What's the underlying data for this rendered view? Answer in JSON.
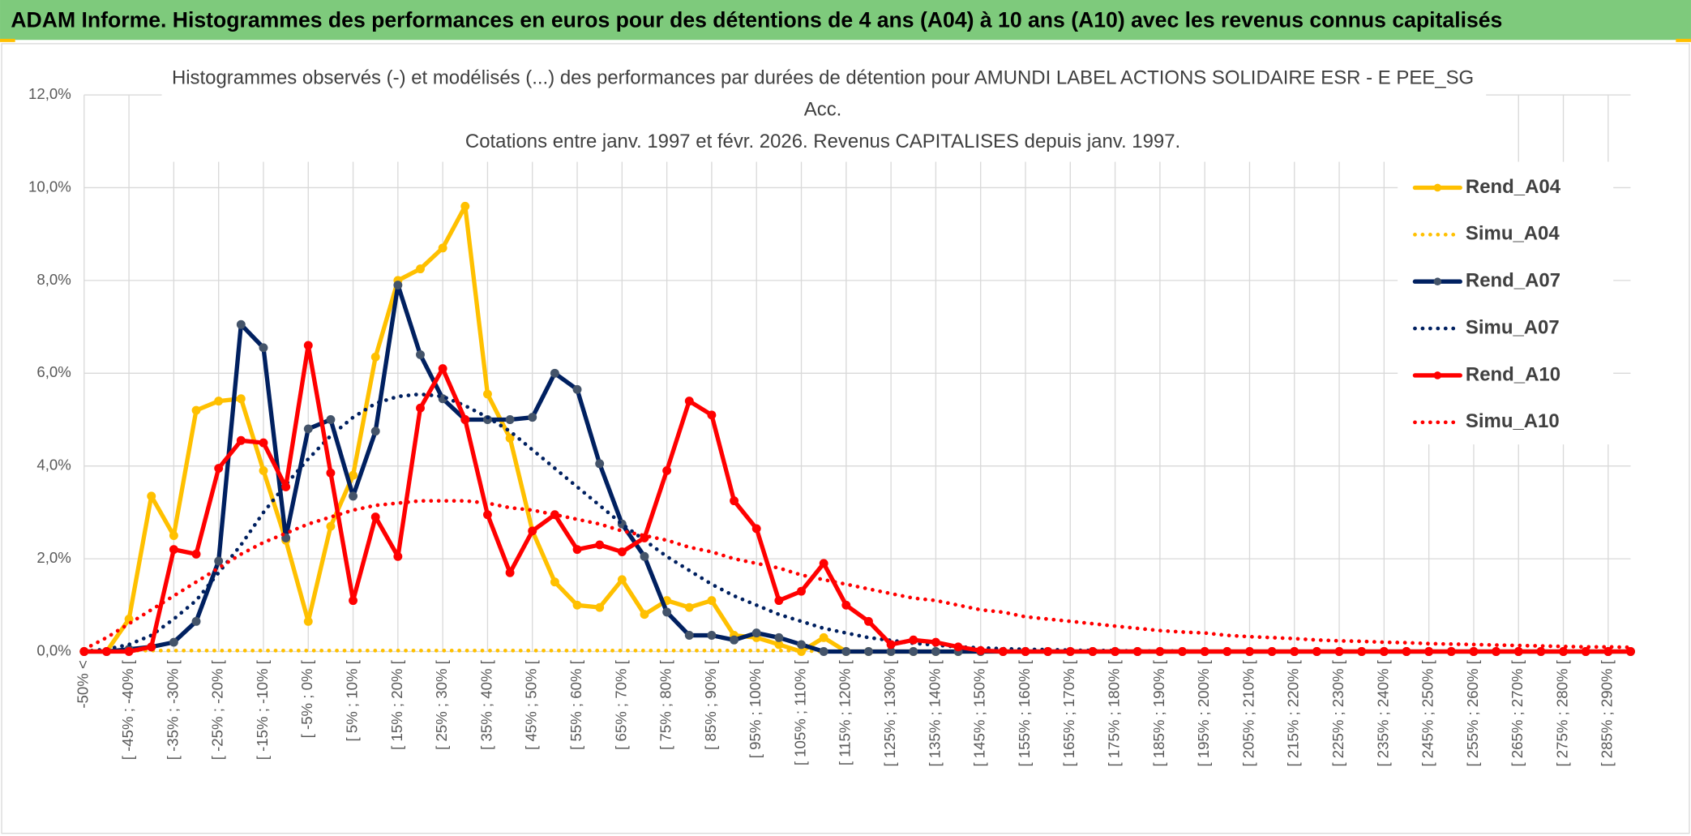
{
  "header": {
    "title": "ADAM Informe. Histogrammes des performances en euros pour des détentions de 4 ans (A04) à 10 ans (A10) avec les revenus connus capitalisés"
  },
  "chart_data": {
    "type": "line",
    "title": [
      "Histogrammes observés (-) et modélisés (...) des performances par durées de détention pour AMUNDI LABEL ACTIONS SOLIDAIRE ESR - E PEE_SG",
      "Acc.",
      "Cotations entre janv. 1997 et févr. 2026. Revenus CAPITALISES depuis janv. 1997."
    ],
    "categories": [
      "-50% <",
      null,
      "[ -45% ; -40% [",
      null,
      "[ -35% ; -30% [",
      null,
      "[ -25% ; -20% [",
      null,
      "[ -15% ; -10% [",
      null,
      "[ -5% ; 0% [",
      null,
      "[ 5% ; 10% [",
      null,
      "[ 15% ; 20% [",
      null,
      "[ 25% ; 30% [",
      null,
      "[ 35% ; 40% [",
      null,
      "[ 45% ; 50% [",
      null,
      "[ 55% ; 60% [",
      null,
      "[ 65% ; 70% [",
      null,
      "[ 75% ; 80% [",
      null,
      "[ 85% ; 90% [",
      null,
      "[ 95% ; 100% [",
      null,
      "[ 105% ; 110% [",
      null,
      "[ 115% ; 120% [",
      null,
      "[ 125% ; 130% [",
      null,
      "[ 135% ; 140% [",
      null,
      "[ 145% ; 150% [",
      null,
      "[ 155% ; 160% [",
      null,
      "[ 165% ; 170% [",
      null,
      "[ 175% ; 180% [",
      null,
      "[ 185% ; 190% [",
      null,
      "[ 195% ; 200% [",
      null,
      "[ 205% ; 210% [",
      null,
      "[ 215% ; 220% [",
      null,
      "[ 225% ; 230% [",
      null,
      "[ 235% ; 240% [",
      null,
      "[ 245% ; 250% [",
      null,
      "[ 255% ; 260% [",
      null,
      "[ 265% ; 270% [",
      null,
      "[ 275% ; 280% [",
      null,
      "[ 285% ; 290% [",
      null
    ],
    "ylim": [
      0,
      12
    ],
    "yticks": [
      {
        "value": 0,
        "label": "0,0%"
      },
      {
        "value": 2,
        "label": "2,0%"
      },
      {
        "value": 4,
        "label": "4,0%"
      },
      {
        "value": 6,
        "label": "6,0%"
      },
      {
        "value": 8,
        "label": "8,0%"
      },
      {
        "value": 10,
        "label": "10,0%"
      },
      {
        "value": 12,
        "label": "12,0%"
      }
    ],
    "grid": true,
    "legend": "right",
    "series": [
      {
        "name": "Rend_A04",
        "color": "#FFC000",
        "marker_color": "#FFC000",
        "style": "solid",
        "markers": true,
        "values": [
          0,
          0,
          0.7,
          3.35,
          2.5,
          5.2,
          5.4,
          5.45,
          3.9,
          2.4,
          0.65,
          2.7,
          3.8,
          6.35,
          8.0,
          8.25,
          8.7,
          9.6,
          5.55,
          4.6,
          2.6,
          1.5,
          1.0,
          0.95,
          1.55,
          0.8,
          1.1,
          0.95,
          1.1,
          0.35,
          0.3,
          0.15,
          0,
          0.3,
          0,
          0,
          0,
          0,
          0,
          0,
          0,
          0,
          0,
          0,
          0,
          0,
          0,
          0,
          0,
          0,
          0,
          0,
          0,
          0,
          0,
          0,
          0,
          0,
          0,
          0,
          0,
          0,
          0,
          0,
          0,
          0,
          0,
          0,
          0,
          0
        ]
      },
      {
        "name": "Simu_A04",
        "color": "#FFC000",
        "style": "dotted",
        "markers": false,
        "values": [
          0.02,
          0.02,
          0.02,
          0.02,
          0.02,
          0.02,
          0.02,
          0.02,
          0.02,
          0.02,
          0.02,
          0.02,
          0.02,
          0.02,
          0.02,
          0.02,
          0.02,
          0.02,
          0.02,
          0.02,
          0.02,
          0.02,
          0.02,
          0.02,
          0.02,
          0.02,
          0.02,
          0.02,
          0.02,
          0.02,
          0.02,
          0.02,
          0.02,
          0,
          0,
          0,
          0,
          0,
          0,
          0,
          0,
          0,
          0,
          0,
          0,
          0,
          0,
          0,
          0,
          0,
          0,
          0,
          0,
          0,
          0,
          0,
          0,
          0,
          0,
          0,
          0,
          0,
          0,
          0,
          0,
          0,
          0,
          0,
          0,
          0
        ]
      },
      {
        "name": "Rend_A07",
        "color": "#002060",
        "marker_color": "#44546A",
        "style": "solid",
        "markers": true,
        "values": [
          0,
          0,
          0.05,
          0.1,
          0.2,
          0.65,
          1.95,
          7.05,
          6.55,
          2.45,
          4.8,
          5.0,
          3.35,
          4.75,
          7.9,
          6.4,
          5.45,
          5.0,
          5.0,
          5.0,
          5.05,
          6.0,
          5.65,
          4.05,
          2.75,
          2.05,
          0.85,
          0.35,
          0.35,
          0.25,
          0.4,
          0.3,
          0.15,
          0,
          0,
          0,
          0,
          0,
          0,
          0,
          0,
          0,
          0,
          0,
          0,
          0,
          0,
          0,
          0,
          0,
          0,
          0,
          0,
          0,
          0,
          0,
          0,
          0,
          0,
          0,
          0,
          0,
          0,
          0,
          0,
          0,
          0,
          0,
          0,
          0
        ]
      },
      {
        "name": "Simu_A07",
        "color": "#002060",
        "style": "dotted",
        "markers": false,
        "values": [
          0,
          0.05,
          0.15,
          0.35,
          0.7,
          1.1,
          1.7,
          2.3,
          3.0,
          3.6,
          4.15,
          4.65,
          5.05,
          5.35,
          5.5,
          5.55,
          5.5,
          5.3,
          5.05,
          4.75,
          4.35,
          3.95,
          3.55,
          3.15,
          2.75,
          2.4,
          2.05,
          1.75,
          1.45,
          1.2,
          1.0,
          0.8,
          0.65,
          0.5,
          0.4,
          0.3,
          0.24,
          0.18,
          0.14,
          0.1,
          0.08,
          0.06,
          0.05,
          0.04,
          0.03,
          0.02,
          0.02,
          0.01,
          0.01,
          0.01,
          0,
          0,
          0,
          0,
          0,
          0,
          0,
          0,
          0,
          0,
          0,
          0,
          0,
          0,
          0,
          0,
          0,
          0,
          0,
          0
        ]
      },
      {
        "name": "Rend_A10",
        "color": "#FF0000",
        "marker_color": "#FF0000",
        "style": "solid",
        "markers": true,
        "values": [
          0,
          0,
          0,
          0.1,
          2.2,
          2.1,
          3.95,
          4.55,
          4.5,
          3.55,
          6.6,
          3.85,
          1.1,
          2.9,
          2.05,
          5.25,
          6.1,
          5.0,
          2.95,
          1.7,
          2.6,
          2.95,
          2.2,
          2.3,
          2.15,
          2.45,
          3.9,
          5.4,
          5.1,
          3.25,
          2.65,
          1.1,
          1.3,
          1.9,
          1.0,
          0.65,
          0.15,
          0.25,
          0.2,
          0.1,
          0.02,
          0,
          0,
          0,
          0,
          0,
          0,
          0,
          0,
          0,
          0,
          0,
          0,
          0,
          0,
          0,
          0,
          0,
          0,
          0,
          0,
          0,
          0,
          0,
          0,
          0,
          0,
          0,
          0,
          0
        ]
      },
      {
        "name": "Simu_A10",
        "color": "#FF0000",
        "style": "dotted",
        "markers": false,
        "values": [
          0.05,
          0.3,
          0.6,
          0.9,
          1.2,
          1.5,
          1.8,
          2.1,
          2.35,
          2.55,
          2.75,
          2.9,
          3.05,
          3.15,
          3.2,
          3.25,
          3.25,
          3.25,
          3.2,
          3.1,
          3.05,
          2.95,
          2.85,
          2.75,
          2.6,
          2.5,
          2.4,
          2.25,
          2.15,
          2.0,
          1.9,
          1.8,
          1.65,
          1.55,
          1.45,
          1.35,
          1.25,
          1.15,
          1.1,
          1.0,
          0.9,
          0.85,
          0.75,
          0.7,
          0.65,
          0.6,
          0.55,
          0.5,
          0.45,
          0.42,
          0.4,
          0.35,
          0.32,
          0.3,
          0.28,
          0.25,
          0.23,
          0.22,
          0.2,
          0.19,
          0.17,
          0.16,
          0.15,
          0.14,
          0.13,
          0.12,
          0.11,
          0.1,
          0.1,
          0.09
        ]
      }
    ]
  }
}
